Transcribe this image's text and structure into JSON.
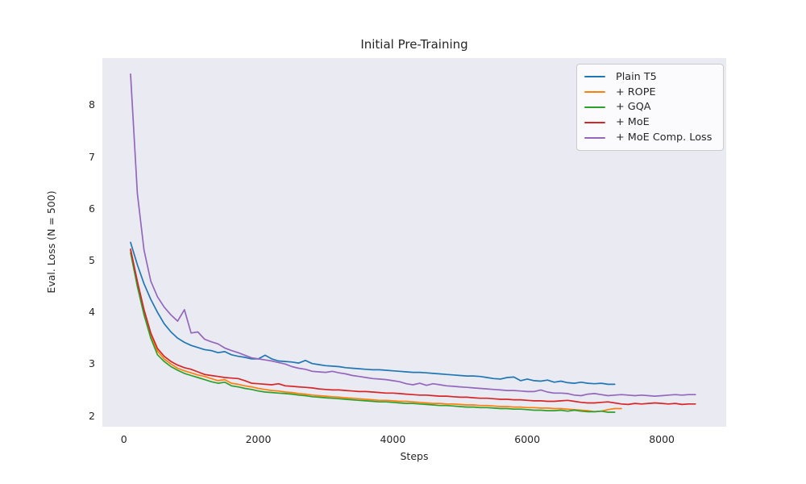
{
  "figure": {
    "background_color": "#ffffff",
    "axes_background_color": "#eaeaf2",
    "text_color": "#262626",
    "legend_border_color": "#cccccc"
  },
  "chart_data": {
    "type": "line",
    "title": "Initial Pre-Training",
    "xlabel": "Steps",
    "ylabel": "Eval. Loss (N = 500)",
    "xlim": [
      -320,
      8958
    ],
    "ylim": [
      1.79,
      8.91
    ],
    "x_ticks": [
      0,
      2000,
      4000,
      6000,
      8000
    ],
    "y_ticks": [
      2,
      3,
      4,
      5,
      6,
      7,
      8
    ],
    "grid": false,
    "legend_position": "upper right",
    "series": [
      {
        "name": "Plain T5",
        "color": "#1f77b4",
        "x_start": 100,
        "x_step": 100,
        "values": [
          5.35,
          4.92,
          4.55,
          4.25,
          4.0,
          3.78,
          3.62,
          3.5,
          3.42,
          3.36,
          3.32,
          3.28,
          3.26,
          3.22,
          3.24,
          3.18,
          3.15,
          3.13,
          3.1,
          3.1,
          3.17,
          3.1,
          3.06,
          3.05,
          3.04,
          3.02,
          3.07,
          3.01,
          2.99,
          2.97,
          2.96,
          2.95,
          2.93,
          2.92,
          2.91,
          2.9,
          2.89,
          2.89,
          2.88,
          2.87,
          2.86,
          2.85,
          2.84,
          2.84,
          2.83,
          2.82,
          2.81,
          2.8,
          2.79,
          2.78,
          2.77,
          2.77,
          2.76,
          2.74,
          2.72,
          2.71,
          2.74,
          2.75,
          2.68,
          2.71,
          2.68,
          2.67,
          2.69,
          2.65,
          2.67,
          2.64,
          2.63,
          2.65,
          2.63,
          2.62,
          2.63,
          2.61,
          2.61
        ]
      },
      {
        "name": "+ ROPE",
        "color": "#ff7f0e",
        "x_start": 100,
        "x_step": 100,
        "values": [
          5.2,
          4.55,
          4.0,
          3.55,
          3.25,
          3.1,
          3.0,
          2.92,
          2.87,
          2.83,
          2.79,
          2.76,
          2.72,
          2.68,
          2.7,
          2.63,
          2.61,
          2.58,
          2.56,
          2.53,
          2.51,
          2.49,
          2.48,
          2.46,
          2.45,
          2.43,
          2.42,
          2.4,
          2.39,
          2.38,
          2.37,
          2.36,
          2.35,
          2.34,
          2.33,
          2.32,
          2.31,
          2.3,
          2.3,
          2.29,
          2.28,
          2.28,
          2.27,
          2.26,
          2.25,
          2.24,
          2.24,
          2.23,
          2.23,
          2.22,
          2.21,
          2.21,
          2.2,
          2.2,
          2.19,
          2.18,
          2.18,
          2.17,
          2.17,
          2.16,
          2.16,
          2.15,
          2.15,
          2.14,
          2.14,
          2.13,
          2.12,
          2.11,
          2.1,
          2.08,
          2.09,
          2.12,
          2.14,
          2.14
        ]
      },
      {
        "name": "+ GQA",
        "color": "#2ca02c",
        "x_start": 100,
        "x_step": 100,
        "values": [
          5.15,
          4.5,
          3.95,
          3.5,
          3.18,
          3.05,
          2.95,
          2.88,
          2.82,
          2.78,
          2.74,
          2.7,
          2.66,
          2.63,
          2.65,
          2.58,
          2.56,
          2.53,
          2.51,
          2.48,
          2.46,
          2.45,
          2.44,
          2.43,
          2.42,
          2.4,
          2.39,
          2.37,
          2.36,
          2.35,
          2.34,
          2.33,
          2.32,
          2.31,
          2.3,
          2.29,
          2.28,
          2.27,
          2.27,
          2.26,
          2.25,
          2.24,
          2.24,
          2.23,
          2.22,
          2.21,
          2.2,
          2.2,
          2.19,
          2.18,
          2.17,
          2.17,
          2.16,
          2.16,
          2.15,
          2.14,
          2.14,
          2.13,
          2.13,
          2.12,
          2.11,
          2.11,
          2.1,
          2.1,
          2.11,
          2.09,
          2.11,
          2.09,
          2.08,
          2.08,
          2.09,
          2.07,
          2.07
        ]
      },
      {
        "name": "+ MoE",
        "color": "#d62728",
        "x_start": 100,
        "x_step": 100,
        "values": [
          5.22,
          4.6,
          4.05,
          3.6,
          3.3,
          3.15,
          3.05,
          2.98,
          2.93,
          2.9,
          2.85,
          2.8,
          2.78,
          2.76,
          2.74,
          2.73,
          2.72,
          2.68,
          2.63,
          2.62,
          2.61,
          2.6,
          2.62,
          2.58,
          2.57,
          2.56,
          2.55,
          2.54,
          2.52,
          2.51,
          2.5,
          2.5,
          2.49,
          2.48,
          2.47,
          2.47,
          2.46,
          2.45,
          2.44,
          2.44,
          2.43,
          2.42,
          2.41,
          2.4,
          2.4,
          2.39,
          2.38,
          2.38,
          2.37,
          2.36,
          2.36,
          2.35,
          2.34,
          2.34,
          2.33,
          2.32,
          2.32,
          2.31,
          2.31,
          2.3,
          2.29,
          2.29,
          2.28,
          2.28,
          2.29,
          2.3,
          2.28,
          2.26,
          2.25,
          2.25,
          2.26,
          2.27,
          2.25,
          2.23,
          2.22,
          2.24,
          2.23,
          2.24,
          2.25,
          2.24,
          2.23,
          2.24,
          2.22,
          2.23,
          2.23
        ]
      },
      {
        "name": "+ MoE Comp. Loss",
        "color": "#9467bd",
        "x_start": 100,
        "x_step": 100,
        "values": [
          8.6,
          6.3,
          5.2,
          4.6,
          4.3,
          4.1,
          3.95,
          3.83,
          4.05,
          3.6,
          3.62,
          3.48,
          3.43,
          3.39,
          3.31,
          3.26,
          3.22,
          3.17,
          3.12,
          3.1,
          3.08,
          3.06,
          3.03,
          3.0,
          2.95,
          2.92,
          2.9,
          2.86,
          2.85,
          2.84,
          2.86,
          2.83,
          2.81,
          2.78,
          2.76,
          2.74,
          2.72,
          2.71,
          2.7,
          2.68,
          2.66,
          2.62,
          2.6,
          2.63,
          2.59,
          2.62,
          2.6,
          2.58,
          2.57,
          2.56,
          2.55,
          2.54,
          2.53,
          2.52,
          2.51,
          2.5,
          2.49,
          2.49,
          2.48,
          2.47,
          2.47,
          2.5,
          2.46,
          2.44,
          2.44,
          2.43,
          2.4,
          2.39,
          2.42,
          2.43,
          2.41,
          2.39,
          2.4,
          2.41,
          2.4,
          2.39,
          2.4,
          2.39,
          2.38,
          2.39,
          2.4,
          2.41,
          2.4,
          2.41,
          2.41
        ]
      }
    ]
  }
}
